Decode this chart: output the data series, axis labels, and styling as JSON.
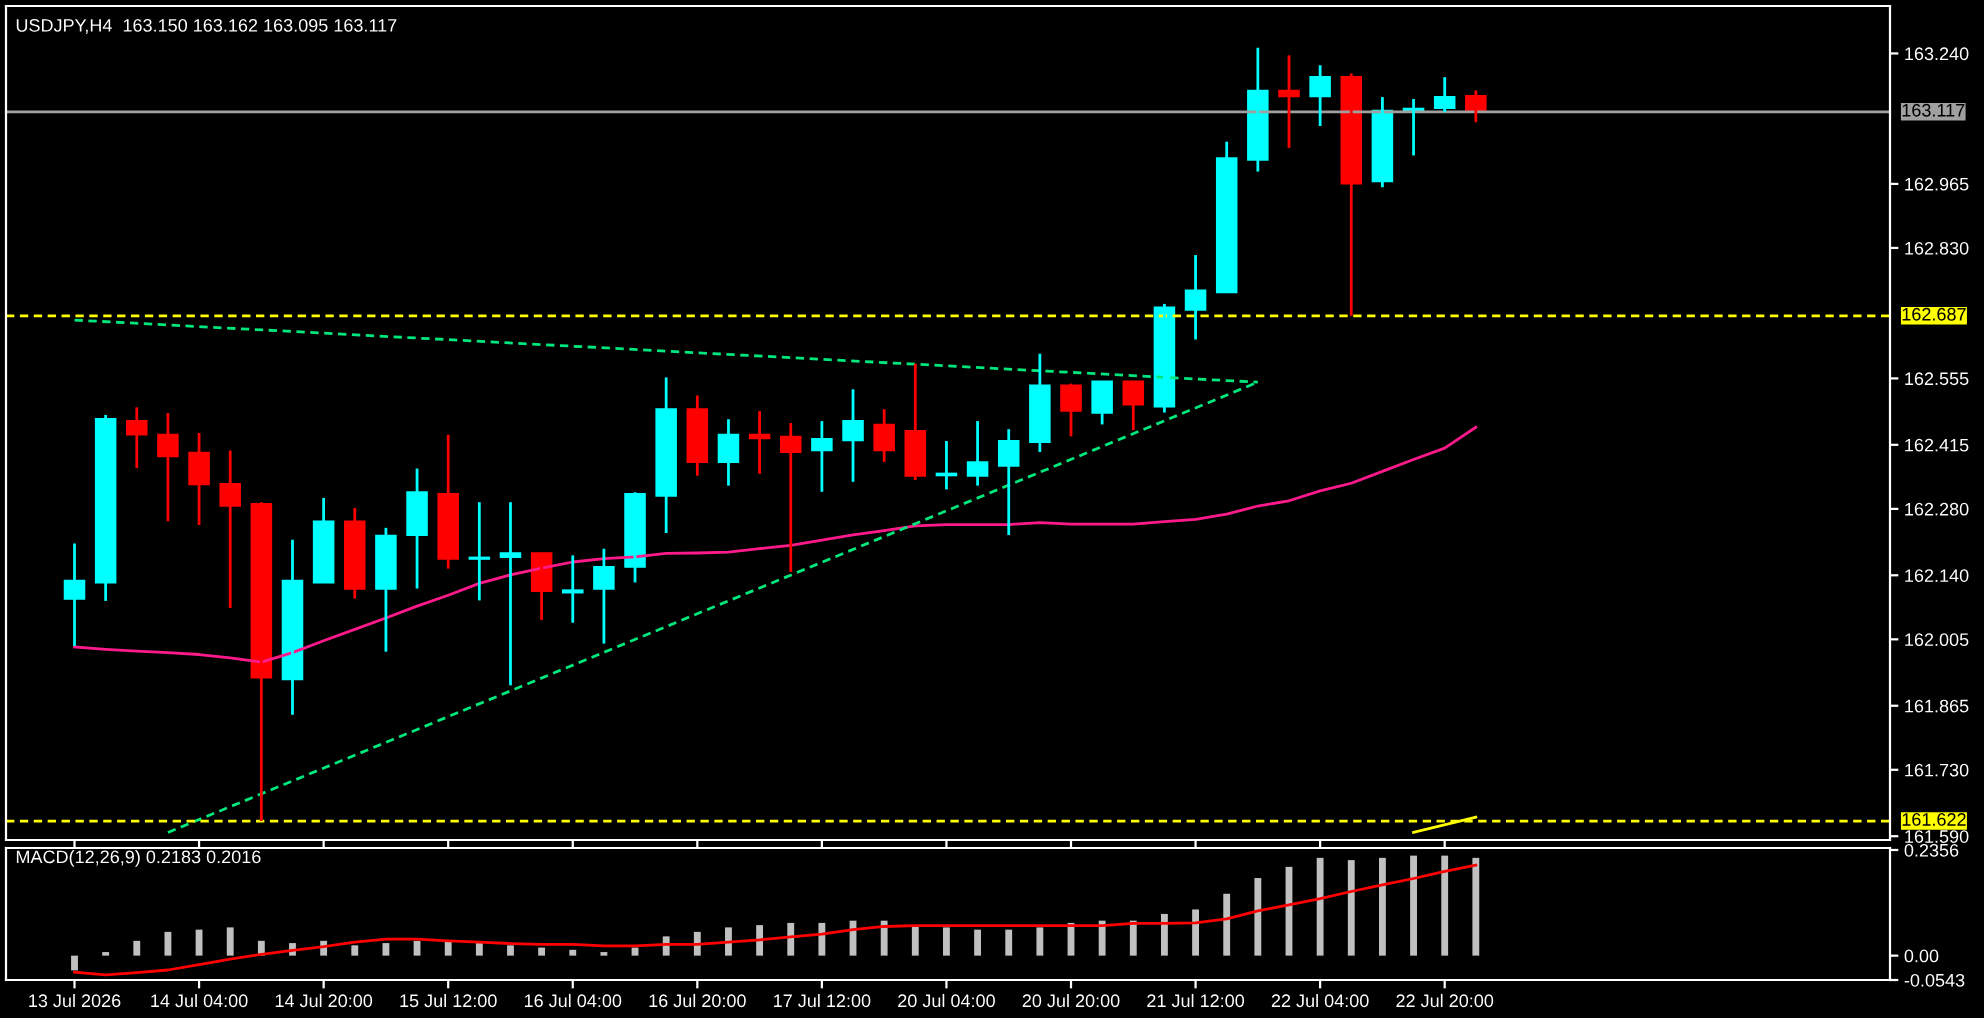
{
  "chart_data": [
    {
      "type": "candlestick",
      "title": "USDJPY,H4  163.150 163.162 163.095 163.117",
      "categories": [
        null,
        null,
        null,
        null,
        null,
        null,
        null,
        null,
        null,
        null,
        null,
        null,
        null,
        null,
        null,
        null,
        null,
        null,
        null,
        null,
        null,
        null,
        null,
        null,
        null,
        null,
        null,
        null,
        null,
        null,
        null,
        null,
        null,
        null,
        null,
        null,
        null,
        null,
        null,
        null,
        null,
        null,
        null,
        null,
        null,
        null
      ],
      "ohlc": [
        [
          162.091,
          162.207,
          161.991,
          162.128
        ],
        [
          162.125,
          162.478,
          162.086,
          162.469
        ],
        [
          162.465,
          162.494,
          162.366,
          162.437
        ],
        [
          162.436,
          162.482,
          162.254,
          162.391
        ],
        [
          162.398,
          162.44,
          162.246,
          162.332
        ],
        [
          162.332,
          162.403,
          162.071,
          162.287
        ],
        [
          162.29,
          162.294,
          161.622,
          161.925
        ],
        [
          161.921,
          162.215,
          161.846,
          162.128
        ],
        [
          162.125,
          162.303,
          162.125,
          162.253
        ],
        [
          162.253,
          162.282,
          162.091,
          162.112
        ],
        [
          162.112,
          162.24,
          161.979,
          162.223
        ],
        [
          162.225,
          162.365,
          162.112,
          162.315
        ],
        [
          162.311,
          162.436,
          162.154,
          162.175
        ],
        [
          162.175,
          162.294,
          162.087,
          162.177
        ],
        [
          162.179,
          162.294,
          161.908,
          162.186
        ],
        [
          162.186,
          162.186,
          162.046,
          162.107
        ],
        [
          162.104,
          162.182,
          162.04,
          162.108
        ],
        [
          162.112,
          162.196,
          161.996,
          162.157
        ],
        [
          162.158,
          162.315,
          162.125,
          162.311
        ],
        [
          162.308,
          162.557,
          162.229,
          162.49
        ],
        [
          162.49,
          162.519,
          162.35,
          162.379
        ],
        [
          162.379,
          162.469,
          162.329,
          162.436
        ],
        [
          162.436,
          162.486,
          162.354,
          162.429
        ],
        [
          162.432,
          162.461,
          162.147,
          162.4
        ],
        [
          162.404,
          162.465,
          162.316,
          162.427
        ],
        [
          162.425,
          162.532,
          162.337,
          162.465
        ],
        [
          162.457,
          162.49,
          162.379,
          162.404
        ],
        [
          162.444,
          162.586,
          162.341,
          162.35
        ],
        [
          162.351,
          162.423,
          162.321,
          162.354
        ],
        [
          162.35,
          162.465,
          162.329,
          162.378
        ],
        [
          162.371,
          162.448,
          162.225,
          162.423
        ],
        [
          162.421,
          162.607,
          162.4,
          162.54
        ],
        [
          162.54,
          162.544,
          162.433,
          162.487
        ],
        [
          162.483,
          162.548,
          162.458,
          162.548
        ],
        [
          162.548,
          162.548,
          162.446,
          162.5
        ],
        [
          162.496,
          162.712,
          162.483,
          162.704
        ],
        [
          162.7,
          162.815,
          162.637,
          162.74
        ],
        [
          162.737,
          163.054,
          162.737,
          163.019
        ],
        [
          163.016,
          163.252,
          162.991,
          163.161
        ],
        [
          163.161,
          163.236,
          163.041,
          163.15
        ],
        [
          163.15,
          163.215,
          163.087,
          163.19
        ],
        [
          163.19,
          163.198,
          162.687,
          162.966
        ],
        [
          162.971,
          163.148,
          162.958,
          163.119
        ],
        [
          163.117,
          163.144,
          163.025,
          163.123
        ],
        [
          163.125,
          163.19,
          163.116,
          163.148
        ],
        [
          163.15,
          163.162,
          163.095,
          163.117
        ]
      ],
      "colors": [
        "#00ffff",
        "#00ffff",
        "#ff0000",
        "#ff0000",
        "#ff0000",
        "#ff0000",
        "#ff0000",
        "#00ffff",
        "#00ffff",
        "#ff0000",
        "#00ffff",
        "#00ffff",
        "#ff0000",
        "#00ffff",
        "#00ffff",
        "#ff0000",
        "#00ffff",
        "#00ffff",
        "#00ffff",
        "#00ffff",
        "#ff0000",
        "#00ffff",
        "#ff0000",
        "#ff0000",
        "#00ffff",
        "#00ffff",
        "#ff0000",
        "#ff0000",
        "#00ffff",
        "#00ffff",
        "#00ffff",
        "#00ffff",
        "#ff0000",
        "#00ffff",
        "#ff0000",
        "#00ffff",
        "#00ffff",
        "#00ffff",
        "#00ffff",
        "#ff0000",
        "#00ffff",
        "#ff0000",
        "#00ffff",
        "#00ffff",
        "#00ffff",
        "#ff0000"
      ],
      "series": [
        {
          "type": "line",
          "color": "#ff1a8c",
          "line_style": "solid",
          "values": [
            161.989,
            161.984,
            161.98,
            161.977,
            161.973,
            161.966,
            161.957,
            161.977,
            162.002,
            162.026,
            162.05,
            162.075,
            162.098,
            162.123,
            162.141,
            162.155,
            162.168,
            162.175,
            162.179,
            162.186,
            162.187,
            162.189,
            162.196,
            162.203,
            162.214,
            162.225,
            162.234,
            162.244,
            162.247,
            162.247,
            162.247,
            162.251,
            162.248,
            162.248,
            162.248,
            162.253,
            162.258,
            162.269,
            162.286,
            162.297,
            162.318,
            162.334,
            162.359,
            162.384,
            162.408,
            162.452
          ]
        },
        {
          "type": "line",
          "color": "#00e87c",
          "line_style": "dashed",
          "values": [
            162.678,
            null,
            null,
            null,
            null,
            null,
            null,
            null,
            null,
            null,
            null,
            null,
            null,
            null,
            null,
            null,
            null,
            null,
            null,
            null,
            null,
            null,
            null,
            null,
            null,
            null,
            null,
            null,
            null,
            null,
            null,
            null,
            null,
            null,
            null,
            null,
            null,
            null,
            162.547,
            null,
            null,
            null,
            null,
            null,
            null,
            null
          ]
        },
        {
          "type": "line",
          "color": "#00e87c",
          "line_style": "dashed",
          "values": [
            null,
            null,
            null,
            161.598,
            null,
            null,
            null,
            null,
            null,
            null,
            null,
            null,
            null,
            null,
            null,
            null,
            null,
            null,
            null,
            null,
            null,
            null,
            null,
            null,
            null,
            null,
            null,
            null,
            null,
            null,
            null,
            null,
            null,
            null,
            null,
            null,
            null,
            null,
            162.547,
            null,
            null,
            null,
            null,
            null,
            null,
            null
          ]
        },
        {
          "type": "line",
          "color": "#ffff00",
          "line_style": "solid",
          "values": [
            null,
            null,
            null,
            null,
            null,
            null,
            null,
            null,
            null,
            null,
            null,
            null,
            null,
            null,
            null,
            null,
            null,
            null,
            null,
            null,
            null,
            null,
            null,
            null,
            null,
            null,
            null,
            null,
            null,
            null,
            null,
            null,
            null,
            null,
            null,
            null,
            null,
            null,
            null,
            null,
            null,
            null,
            null,
            161.598,
            null,
            161.63
          ]
        }
      ],
      "ref_lines": [
        {
          "axis": "y",
          "value": 163.117,
          "label": "163.117",
          "color": "#a0a0a0",
          "line_style": "solid"
        },
        {
          "axis": "y",
          "value": 162.687,
          "label": "162.687",
          "color": "#ffff00",
          "line_style": "dashed"
        },
        {
          "axis": "y",
          "value": 161.622,
          "label": "161.622",
          "color": "#ffff00",
          "line_style": "dashed"
        }
      ],
      "ylim": [
        161.582,
        163.34
      ],
      "yticks": [
        {
          "value": 163.24,
          "label": "163.240"
        },
        162.965,
        {
          "value": 162.83,
          "label": "162.830"
        },
        162.555,
        162.415,
        {
          "value": 162.28,
          "label": "162.280"
        },
        {
          "value": 162.14,
          "label": "162.140"
        },
        162.005,
        161.865,
        {
          "value": 161.73,
          "label": "161.730"
        },
        {
          "value": 161.59,
          "label": "161.590"
        }
      ],
      "tick_labels": "y",
      "grid": false,
      "legend": false
    },
    {
      "type": "bar",
      "title": "MACD(12,26,9) 0.2183 0.2016",
      "categories": [
        "13 Jul 2026",
        null,
        null,
        null,
        "14 Jul 04:00",
        null,
        null,
        null,
        "14 Jul 20:00",
        null,
        null,
        null,
        "15 Jul 12:00",
        null,
        null,
        null,
        "16 Jul 04:00",
        null,
        null,
        null,
        "16 Jul 20:00",
        null,
        null,
        null,
        "17 Jul 12:00",
        null,
        null,
        null,
        "20 Jul 04:00",
        null,
        null,
        null,
        "20 Jul 20:00",
        null,
        null,
        null,
        "21 Jul 12:00",
        null,
        null,
        null,
        "22 Jul 04:00",
        null,
        null,
        null,
        "22 Jul 20:00",
        null
      ],
      "series": [
        {
          "type": "bar",
          "color": "#c0c0c0",
          "values": [
            -0.033,
            0.008,
            0.033,
            0.053,
            0.058,
            0.063,
            0.033,
            0.028,
            0.033,
            0.023,
            0.028,
            0.033,
            0.033,
            0.028,
            0.023,
            0.018,
            0.013,
            0.008,
            0.018,
            0.043,
            0.053,
            0.063,
            0.068,
            0.073,
            0.073,
            0.078,
            0.078,
            0.067,
            0.063,
            0.058,
            0.058,
            0.063,
            0.073,
            0.078,
            0.078,
            0.093,
            0.103,
            0.138,
            0.173,
            0.198,
            0.218,
            0.213,
            0.218,
            0.223,
            0.223,
            0.218
          ]
        },
        {
          "type": "line",
          "color": "#ff0000",
          "line_style": "solid",
          "values": [
            -0.037,
            -0.043,
            -0.038,
            -0.032,
            -0.02,
            -0.008,
            0.003,
            0.012,
            0.02,
            0.03,
            0.037,
            0.037,
            0.033,
            0.03,
            0.027,
            0.025,
            0.025,
            0.022,
            0.022,
            0.025,
            0.025,
            0.03,
            0.035,
            0.042,
            0.048,
            0.058,
            0.065,
            0.067,
            0.067,
            0.067,
            0.067,
            0.067,
            0.067,
            0.067,
            0.072,
            0.072,
            0.073,
            0.082,
            0.1,
            0.113,
            0.127,
            0.143,
            0.158,
            0.172,
            0.188,
            0.202
          ]
        }
      ],
      "ylim": [
        -0.0543,
        0.24
      ],
      "yticks": [
        0.2356,
        {
          "value": 0,
          "label": "0.00"
        },
        -0.0543
      ],
      "grid": false,
      "legend": false
    }
  ]
}
